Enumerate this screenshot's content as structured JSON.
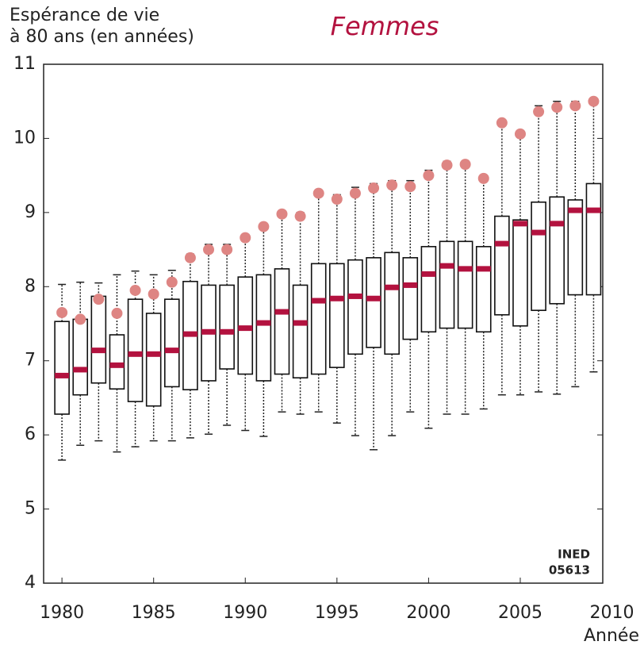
{
  "chart_data": {
    "type": "box",
    "title": "Femmes",
    "y_label": [
      "Espérance de vie",
      "à 80 ans (en années)"
    ],
    "x_label": "Année",
    "source": [
      "INED",
      "05613"
    ],
    "x": [
      1980,
      1981,
      1982,
      1983,
      1984,
      1985,
      1986,
      1987,
      1988,
      1989,
      1990,
      1991,
      1992,
      1993,
      1994,
      1995,
      1996,
      1997,
      1998,
      1999,
      2000,
      2001,
      2002,
      2003,
      2004,
      2005,
      2006,
      2007,
      2008,
      2009
    ],
    "whisker_low": [
      5.66,
      5.86,
      5.92,
      5.77,
      5.84,
      5.92,
      5.92,
      5.96,
      6.01,
      6.13,
      6.06,
      5.98,
      6.31,
      6.28,
      6.31,
      6.16,
      5.99,
      5.8,
      5.99,
      6.31,
      6.09,
      6.28,
      6.28,
      6.35,
      6.54,
      6.54,
      6.58,
      6.55,
      6.65,
      6.85
    ],
    "q1": [
      6.28,
      6.54,
      6.7,
      6.62,
      6.45,
      6.39,
      6.65,
      6.61,
      6.73,
      6.89,
      6.82,
      6.73,
      6.82,
      6.77,
      6.82,
      6.91,
      7.09,
      7.18,
      7.09,
      7.29,
      7.39,
      7.44,
      7.44,
      7.39,
      7.62,
      7.47,
      7.68,
      7.77,
      7.89,
      7.89
    ],
    "median": [
      6.8,
      6.88,
      7.14,
      6.94,
      7.09,
      7.09,
      7.14,
      7.36,
      7.39,
      7.39,
      7.44,
      7.51,
      7.66,
      7.51,
      7.81,
      7.84,
      7.87,
      7.84,
      7.99,
      8.02,
      8.17,
      8.28,
      8.24,
      8.24,
      8.58,
      8.85,
      8.73,
      8.85,
      9.03,
      9.03
    ],
    "q3": [
      7.53,
      7.56,
      7.87,
      7.35,
      7.83,
      7.64,
      7.83,
      8.07,
      8.02,
      8.02,
      8.13,
      8.16,
      8.24,
      8.02,
      8.31,
      8.31,
      8.36,
      8.39,
      8.46,
      8.39,
      8.54,
      8.61,
      8.61,
      8.54,
      8.95,
      8.9,
      9.14,
      9.21,
      9.17,
      9.39
    ],
    "whisker_high": [
      8.03,
      8.06,
      8.05,
      8.16,
      8.21,
      8.16,
      8.22,
      8.44,
      8.57,
      8.57,
      8.68,
      8.82,
      9.0,
      9.0,
      9.3,
      9.24,
      9.34,
      9.39,
      9.43,
      9.43,
      9.57,
      9.69,
      9.69,
      9.5,
      10.25,
      10.1,
      10.44,
      10.5,
      10.5,
      10.5
    ],
    "points": [
      7.65,
      7.56,
      7.83,
      7.64,
      7.95,
      7.9,
      8.06,
      8.39,
      8.5,
      8.5,
      8.66,
      8.81,
      8.98,
      8.95,
      9.26,
      9.18,
      9.26,
      9.33,
      9.37,
      9.35,
      9.5,
      9.64,
      9.65,
      9.46,
      10.21,
      10.06,
      10.36,
      10.42,
      10.44,
      10.5
    ],
    "median_color": "#b3123f",
    "point_color": "#de8583",
    "box_color": "#111111",
    "xlim": [
      1979,
      2009.5
    ],
    "xticks": [
      1980,
      1985,
      1990,
      1995,
      2000,
      2005,
      2010
    ],
    "ylim": [
      4,
      11
    ],
    "yticks": [
      4,
      5,
      6,
      7,
      8,
      9,
      10,
      11
    ]
  }
}
